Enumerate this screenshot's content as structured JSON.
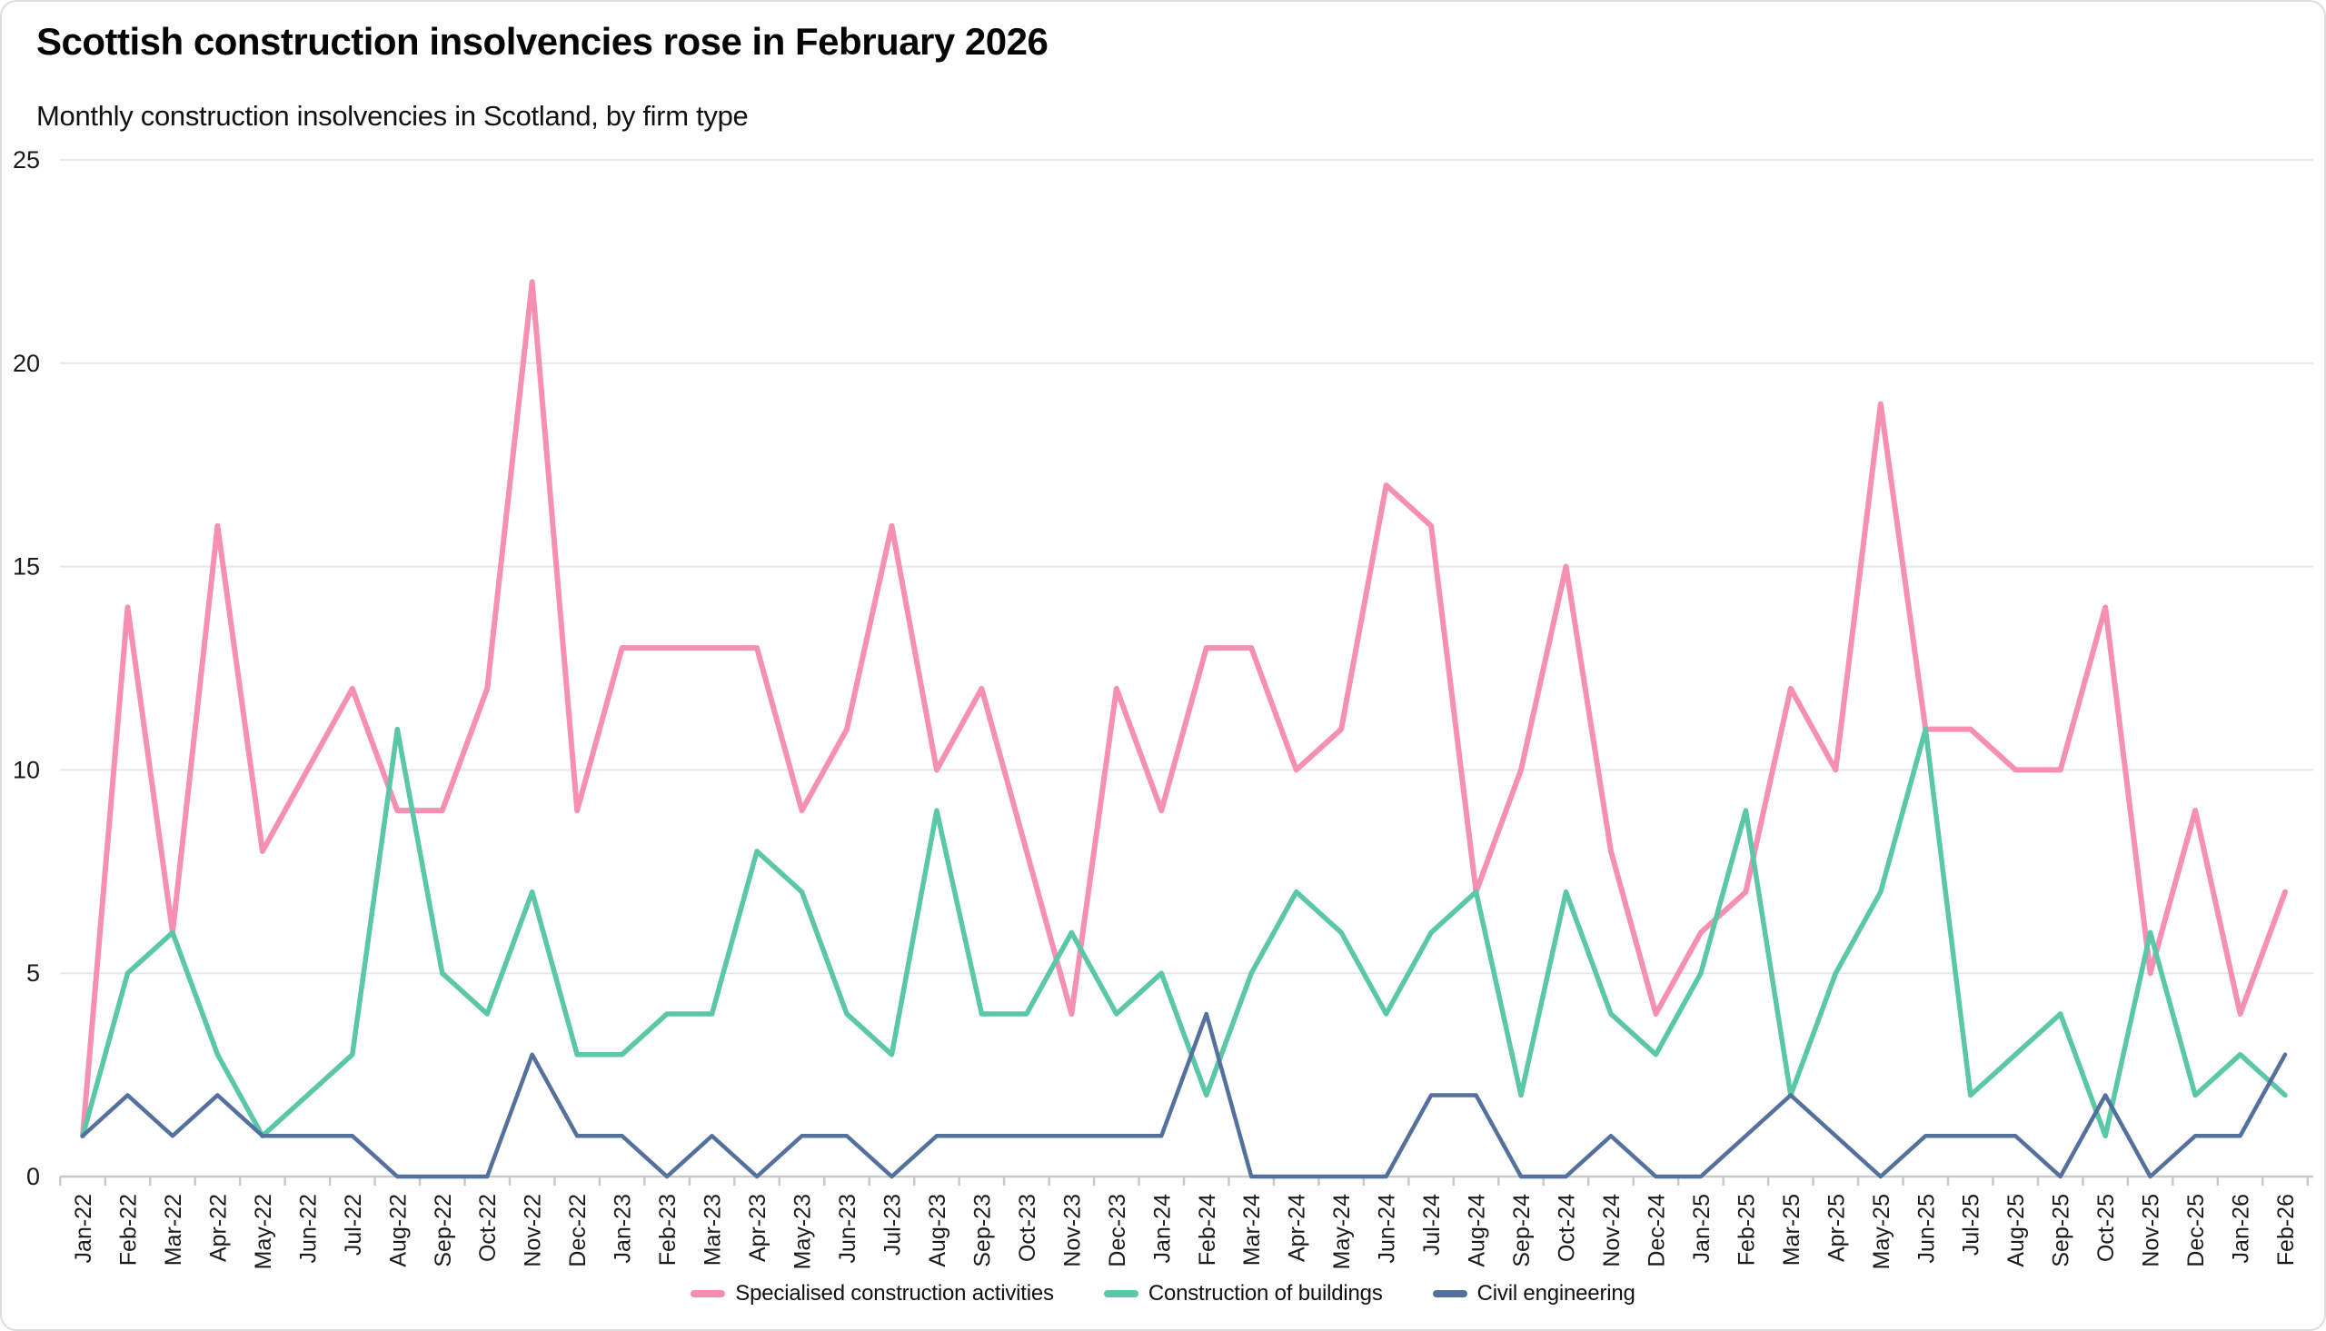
{
  "card": {
    "title": "Scottish construction insolvencies rose in February 2026",
    "subtitle": "Monthly construction insolvencies in Scotland, by firm type"
  },
  "chart_data": {
    "type": "line",
    "title": "Scottish construction insolvencies rose in February 2026",
    "subtitle": "Monthly construction insolvencies in Scotland, by firm type",
    "x": [
      "Jan-22",
      "Feb-22",
      "Mar-22",
      "Apr-22",
      "May-22",
      "Jun-22",
      "Jul-22",
      "Aug-22",
      "Sep-22",
      "Oct-22",
      "Nov-22",
      "Dec-22",
      "Jan-23",
      "Feb-23",
      "Mar-23",
      "Apr-23",
      "May-23",
      "Jun-23",
      "Jul-23",
      "Aug-23",
      "Sep-23",
      "Oct-23",
      "Nov-23",
      "Dec-23",
      "Jan-24",
      "Feb-24",
      "Mar-24",
      "Apr-24",
      "May-24",
      "Jun-24",
      "Jul-24",
      "Aug-24",
      "Sep-24",
      "Oct-24",
      "Nov-24",
      "Dec-24",
      "Jan-25",
      "Feb-25",
      "Mar-25",
      "Apr-25",
      "May-25",
      "Jun-25",
      "Jul-25",
      "Aug-25",
      "Sep-25",
      "Oct-25",
      "Nov-25",
      "Dec-25",
      "Jan-26",
      "Feb-26"
    ],
    "series": [
      {
        "name": "Specialised construction activities",
        "color": "#f78fb2",
        "stroke_width": 6,
        "values": [
          1,
          14,
          6,
          16,
          8,
          10,
          12,
          9,
          9,
          12,
          22,
          9,
          13,
          13,
          13,
          13,
          9,
          11,
          16,
          10,
          12,
          8,
          4,
          12,
          9,
          13,
          13,
          10,
          11,
          17,
          16,
          7,
          10,
          15,
          8,
          4,
          6,
          7,
          12,
          10,
          19,
          11,
          11,
          10,
          10,
          14,
          5,
          9,
          4,
          7
        ]
      },
      {
        "name": "Construction of buildings",
        "color": "#5ac7a6",
        "stroke_width": 5.5,
        "values": [
          1,
          5,
          6,
          3,
          1,
          2,
          3,
          11,
          5,
          4,
          7,
          3,
          3,
          4,
          4,
          8,
          7,
          4,
          3,
          9,
          4,
          4,
          6,
          4,
          5,
          2,
          5,
          7,
          6,
          4,
          6,
          7,
          2,
          7,
          4,
          3,
          5,
          9,
          2,
          5,
          7,
          11,
          2,
          3,
          4,
          1,
          6,
          2,
          3,
          2
        ]
      },
      {
        "name": "Civil engineering",
        "color": "#54719e",
        "stroke_width": 4.5,
        "values": [
          1,
          2,
          1,
          2,
          1,
          1,
          1,
          0,
          0,
          0,
          3,
          1,
          1,
          0,
          1,
          0,
          1,
          1,
          0,
          1,
          1,
          1,
          1,
          1,
          1,
          4,
          0,
          0,
          0,
          0,
          2,
          2,
          0,
          0,
          1,
          0,
          0,
          1,
          2,
          1,
          0,
          1,
          1,
          1,
          0,
          2,
          0,
          1,
          1,
          3
        ]
      }
    ],
    "ylim": [
      0,
      25
    ],
    "yticks": [
      0,
      5,
      10,
      15,
      20,
      25
    ],
    "grid": "horizontal",
    "legend_position": "bottom"
  }
}
